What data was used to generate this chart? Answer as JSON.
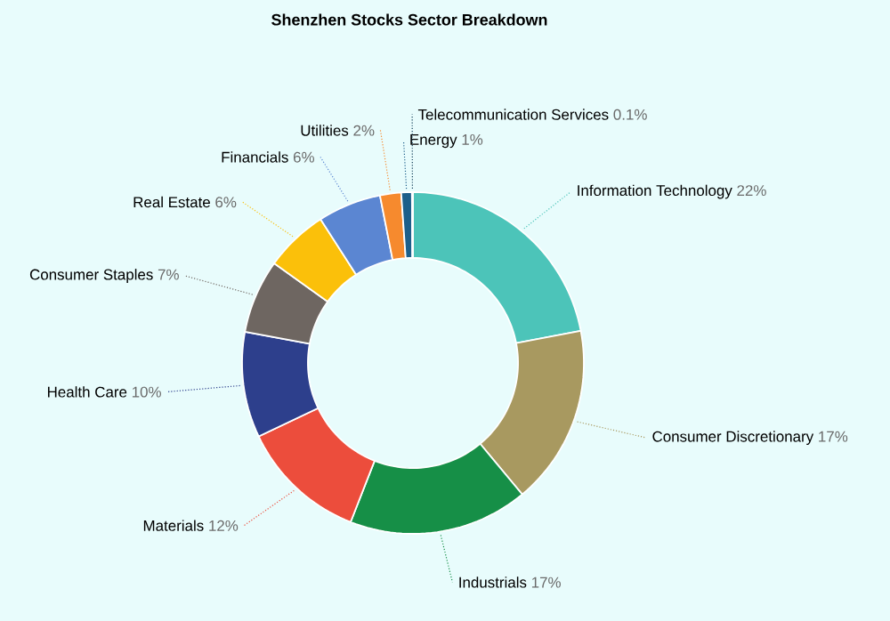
{
  "chart_data": {
    "type": "donut",
    "title": "Shenzhen Stocks Sector Breakdown",
    "categories": [
      "Information Technology",
      "Consumer Discretionary",
      "Industrials",
      "Materials",
      "Health Care",
      "Consumer Staples",
      "Real Estate",
      "Financials",
      "Utilities",
      "Energy",
      "Telecommunication Services"
    ],
    "values": [
      22,
      17,
      17,
      12,
      10,
      7,
      6,
      6,
      2,
      1,
      0.1
    ],
    "value_labels": [
      "22%",
      "17%",
      "17%",
      "12%",
      "10%",
      "7%",
      "6%",
      "6%",
      "2%",
      "1%",
      "0.1%"
    ],
    "colors": [
      "#4cc4b9",
      "#a89960",
      "#168f47",
      "#ec4d3c",
      "#2d3f8c",
      "#6e6661",
      "#fbc00a",
      "#5b86d2",
      "#f68a2e",
      "#1d5f8a",
      "#0f3b55"
    ]
  }
}
